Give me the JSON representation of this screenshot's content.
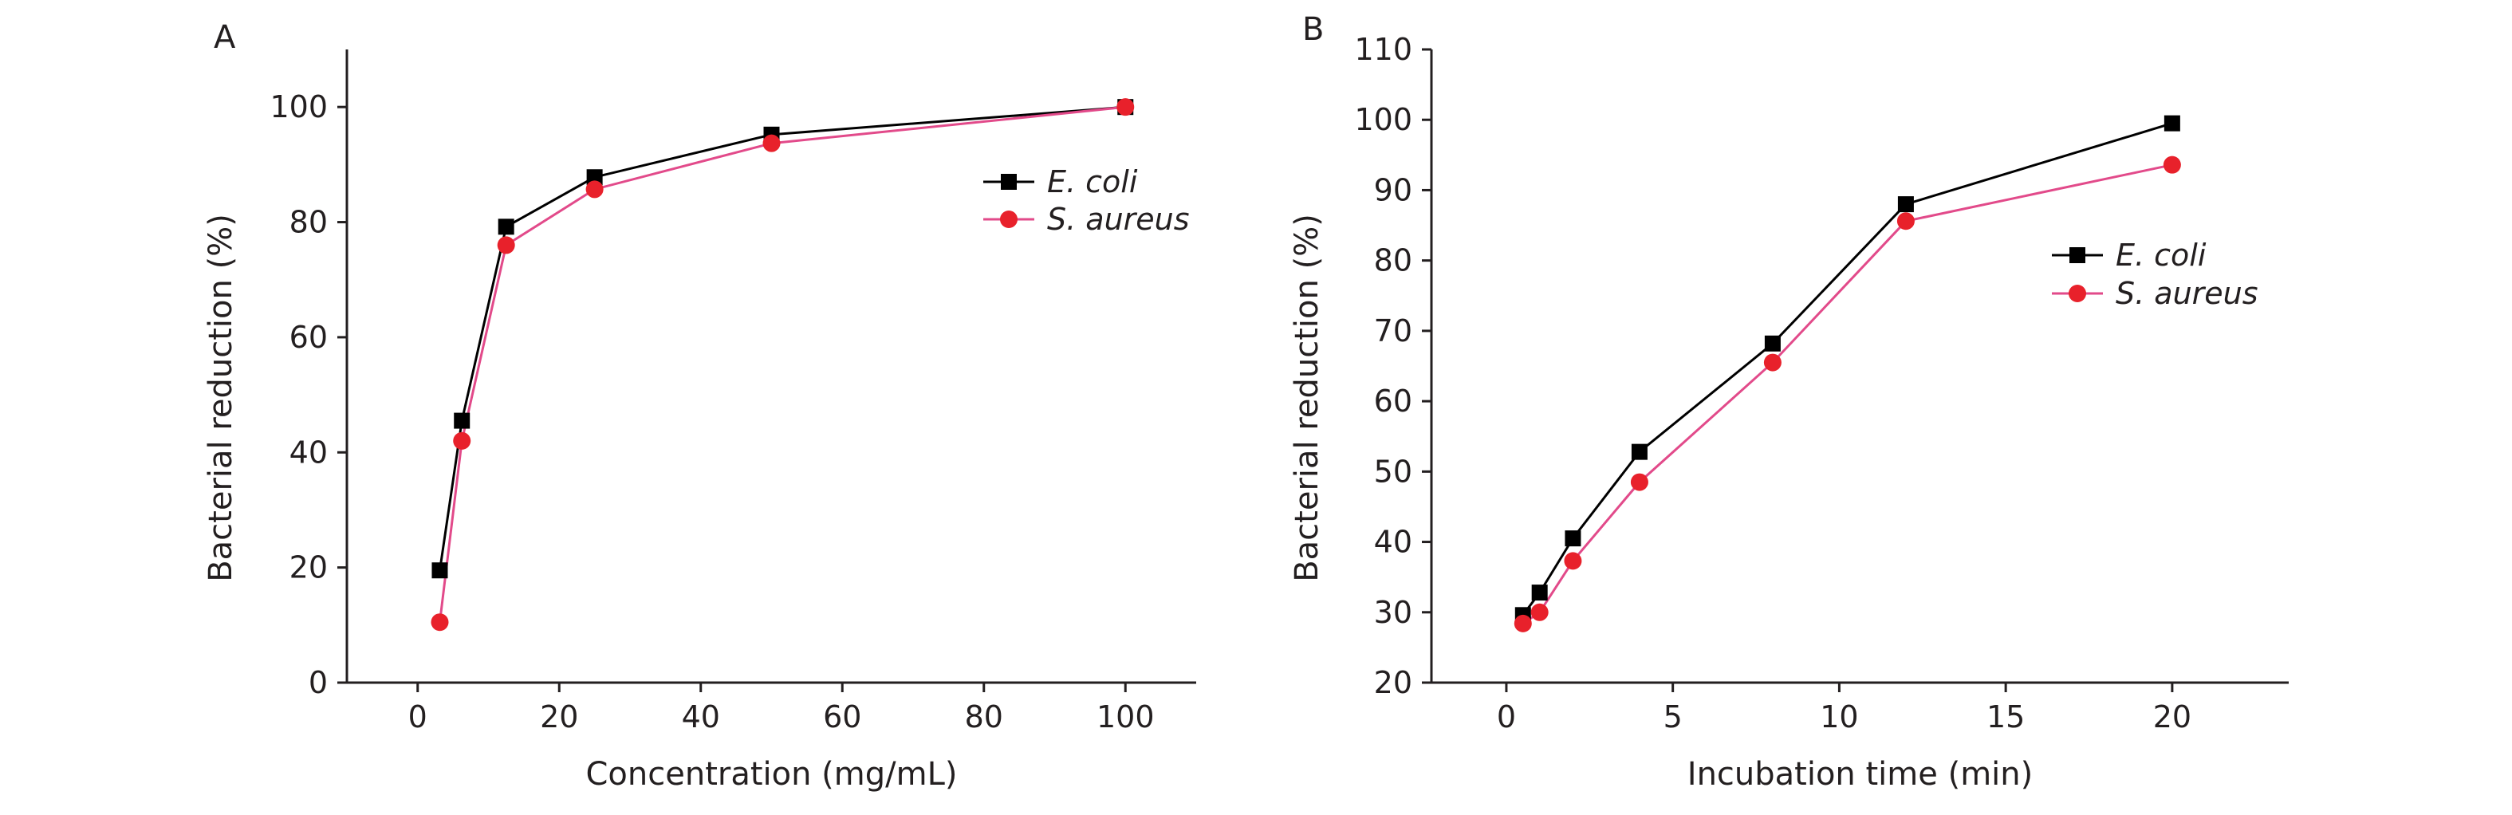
{
  "chart_data": [
    {
      "type": "line",
      "panel_label": "A",
      "xlabel": "Concentration (mg/mL)",
      "ylabel": "Bacterial reduction (%)",
      "xlim": [
        -10,
        110
      ],
      "ylim": [
        0,
        110
      ],
      "xticks": [
        0,
        20,
        40,
        60,
        80,
        100
      ],
      "yticks": [
        0,
        20,
        40,
        60,
        80,
        100
      ],
      "legend_position": "right",
      "series": [
        {
          "name": "E. coli",
          "color": "#000000",
          "marker": "square",
          "x": [
            3.125,
            6.25,
            12.5,
            25,
            50,
            100
          ],
          "y": [
            19.5,
            45.5,
            79.2,
            87.8,
            95.2,
            100
          ]
        },
        {
          "name": "S. aureus",
          "color": "#e8212b",
          "line_color": "#e24a8a",
          "marker": "circle",
          "x": [
            3.125,
            6.25,
            12.5,
            25,
            50,
            100
          ],
          "y": [
            10.5,
            42,
            76,
            85.7,
            93.7,
            100
          ]
        }
      ]
    },
    {
      "type": "line",
      "panel_label": "B",
      "xlabel": "Incubation time (min)",
      "ylabel": "Bacterial reduction (%)",
      "xlim": [
        -2.25,
        23.5
      ],
      "ylim": [
        20,
        110
      ],
      "xticks": [
        0,
        5,
        10,
        15,
        20
      ],
      "yticks": [
        20,
        30,
        40,
        50,
        60,
        70,
        80,
        90,
        100,
        110
      ],
      "legend_position": "right",
      "series": [
        {
          "name": "E. coli",
          "color": "#000000",
          "marker": "square",
          "x": [
            0.5,
            1,
            2,
            4,
            8,
            12,
            20
          ],
          "y": [
            29.6,
            32.8,
            40.5,
            52.8,
            68.2,
            88,
            99.5
          ]
        },
        {
          "name": "S. aureus",
          "color": "#e8212b",
          "line_color": "#e24a8a",
          "marker": "circle",
          "x": [
            0.5,
            1,
            2,
            4,
            8,
            12,
            20
          ],
          "y": [
            28.4,
            30,
            37.3,
            48.5,
            65.5,
            85.6,
            93.6
          ]
        }
      ]
    }
  ]
}
